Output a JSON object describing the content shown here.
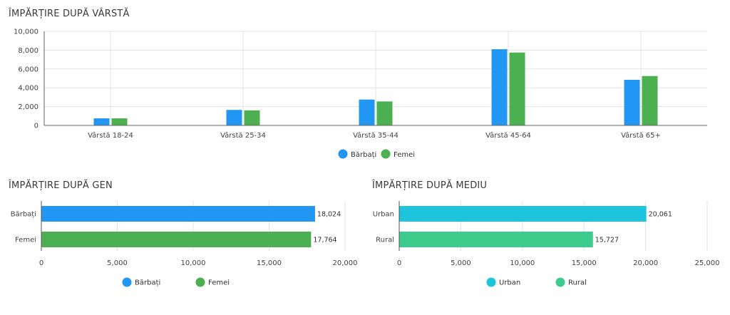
{
  "age_section": {
    "title": "ÎMPĂRȚIRE DUPĂ VÂRSTĂ"
  },
  "gender_section": {
    "title": "ÎMPĂRȚIRE DUPĂ GEN"
  },
  "environment_section": {
    "title": "ÎMPĂRȚIRE DUPĂ MEDIU"
  },
  "chart_data": [
    {
      "type": "bar",
      "orientation": "vertical",
      "title": "ÎMPĂRȚIRE DUPĂ VÂRSTĂ",
      "categories": [
        "Vârstă 18-24",
        "Vârstă 25-34",
        "Vârstă 35-44",
        "Vârstă 45-64",
        "Vârstă 65+"
      ],
      "series": [
        {
          "name": "Bărbați",
          "color": "#2196f3",
          "values": [
            750,
            1650,
            2750,
            8100,
            4850
          ]
        },
        {
          "name": "Femei",
          "color": "#4caf50",
          "values": [
            750,
            1600,
            2550,
            7750,
            5250
          ]
        }
      ],
      "ylim": [
        0,
        10000
      ],
      "yticks": [
        "0",
        "2,000",
        "4,000",
        "6,000",
        "8,000",
        "10,000"
      ],
      "grid": true,
      "legend": "bottom-center"
    },
    {
      "type": "bar",
      "orientation": "horizontal",
      "title": "ÎMPĂRȚIRE DUPĂ GEN",
      "categories": [
        "Bărbați",
        "Femei"
      ],
      "values": [
        18024,
        17764
      ],
      "value_labels": [
        "18,024",
        "17,764"
      ],
      "colors": [
        "#2196f3",
        "#4caf50"
      ],
      "xlim": [
        0,
        20000
      ],
      "xticks": [
        "0",
        "5,000",
        "10,000",
        "15,000",
        "20,000"
      ],
      "grid": true,
      "legend": "bottom-center",
      "legend_items": [
        {
          "name": "Bărbați",
          "color": "#2196f3"
        },
        {
          "name": "Femei",
          "color": "#4caf50"
        }
      ]
    },
    {
      "type": "bar",
      "orientation": "horizontal",
      "title": "ÎMPĂRȚIRE DUPĂ MEDIU",
      "categories": [
        "Urban",
        "Rural"
      ],
      "values": [
        20061,
        15727
      ],
      "value_labels": [
        "20,061",
        "15,727"
      ],
      "colors": [
        "#1ec4db",
        "#3dcc8e"
      ],
      "xlim": [
        0,
        25000
      ],
      "xticks": [
        "0",
        "5,000",
        "10,000",
        "15,000",
        "20,000",
        "25,000"
      ],
      "grid": true,
      "legend": "bottom-center",
      "legend_items": [
        {
          "name": "Urban",
          "color": "#1ec4db"
        },
        {
          "name": "Rural",
          "color": "#3dcc8e"
        }
      ]
    }
  ]
}
